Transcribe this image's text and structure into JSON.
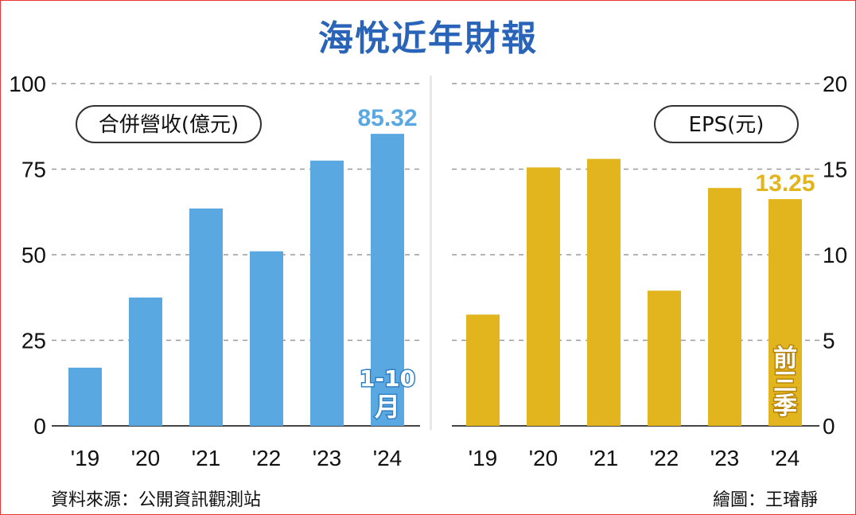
{
  "title": "海悅近年財報",
  "source": "資料來源：公開資訊觀測站",
  "credit": "繪圖：王璿靜",
  "chart_data": [
    {
      "type": "bar",
      "label": "合併營收(億元)",
      "categories": [
        "'19",
        "'20",
        "'21",
        "'22",
        "'23",
        "'24"
      ],
      "values": [
        17,
        37.5,
        63.5,
        51,
        77.5,
        85.32
      ],
      "ylim": [
        0,
        100
      ],
      "yticks": [
        "0",
        "25",
        "50",
        "75",
        "100"
      ],
      "highlight_label": "85.32",
      "last_bar_note_top": "1-10",
      "last_bar_note_bottom": "月",
      "color": "#5aa8e2",
      "accent": "#5aa8e2",
      "grid": true
    },
    {
      "type": "bar",
      "label": "EPS(元)",
      "categories": [
        "'19",
        "'20",
        "'21",
        "'22",
        "'23",
        "'24"
      ],
      "values": [
        6.5,
        15.1,
        15.6,
        7.9,
        13.9,
        13.25
      ],
      "ylim": [
        0,
        20
      ],
      "yticks": [
        "0",
        "5",
        "10",
        "15",
        "20"
      ],
      "highlight_label": "13.25",
      "last_bar_note_top": "前",
      "last_bar_note_mid": "三",
      "last_bar_note_bottom": "季",
      "color": "#e2b51e",
      "accent": "#e2b51e",
      "grid": true
    }
  ]
}
